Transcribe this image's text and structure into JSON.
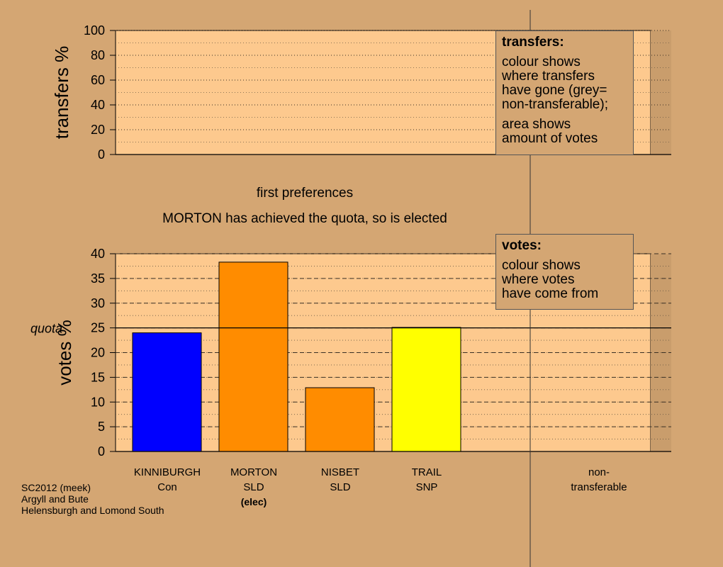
{
  "chart_data": [
    {
      "type": "bar",
      "ylabel": "transfers %",
      "ylim": [
        0,
        100
      ],
      "yticks": [
        0,
        20,
        40,
        60,
        80,
        100
      ],
      "grid": "dotted",
      "categories": [
        "KINNIBURGH",
        "MORTON",
        "NISBET",
        "TRAIL",
        "non-transferable"
      ],
      "values": [
        0,
        0,
        0,
        0,
        0
      ]
    },
    {
      "type": "bar",
      "ylabel": "votes %",
      "ylim": [
        0,
        40
      ],
      "yticks": [
        0,
        5,
        10,
        15,
        20,
        25,
        30,
        35,
        40
      ],
      "grid": "dashed",
      "quota": {
        "label": "quota",
        "value": 25
      },
      "categories": [
        "KINNIBURGH",
        "MORTON",
        "NISBET",
        "TRAIL"
      ],
      "values": [
        24,
        38.3,
        12.9,
        25.1
      ],
      "colors": [
        "#0000ff",
        "#ff8c00",
        "#ff8c00",
        "#ffff00"
      ]
    }
  ],
  "stage_title": "first preferences",
  "stage_message": "MORTON has achieved the quota, so is elected",
  "transfers_box": {
    "title": "transfers:",
    "line1": "colour shows\nwhere transfers\nhave gone (grey=\nnon-transferable);",
    "line2": "area shows\namount of votes"
  },
  "votes_box": {
    "title": "votes:",
    "line1": "colour shows\nwhere votes\nhave come from"
  },
  "candidates": [
    {
      "name": "KINNIBURGH",
      "party": "Con",
      "status": ""
    },
    {
      "name": "MORTON",
      "party": "SLD",
      "status": "(elec)"
    },
    {
      "name": "NISBET",
      "party": "SLD",
      "status": ""
    },
    {
      "name": "TRAIL",
      "party": "SNP",
      "status": ""
    }
  ],
  "nontransferable": {
    "line1": "non-",
    "line2": "transferable"
  },
  "footer": {
    "line1": "SC2012 (meek)",
    "line2": "Argyll and Bute",
    "line3": "Helensburgh and Lomond South"
  }
}
